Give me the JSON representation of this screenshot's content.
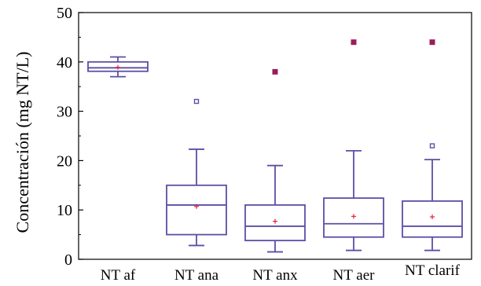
{
  "colors": {
    "box": "#5b4fa6",
    "mean": "#e8203a",
    "outlier": "#9b1d5a",
    "axis": "#000000"
  },
  "chart_data": {
    "type": "box",
    "title": "",
    "xlabel": "",
    "ylabel": "Concentración  (mg NT/L)",
    "ylim": [
      0,
      50
    ],
    "yticks": [
      "0",
      "10",
      "20",
      "30",
      "40",
      "50"
    ],
    "categories": [
      "NT af",
      "NT ana",
      "NT anx",
      "NT aer",
      "NT clarif"
    ],
    "boxes": [
      {
        "name": "NT af",
        "whisker_low": 37,
        "q1": 38.1,
        "median": 38.8,
        "q3": 40,
        "whisker_high": 41,
        "mean": 38.9,
        "outliers": [],
        "far_outliers": []
      },
      {
        "name": "NT ana",
        "whisker_low": 2.8,
        "q1": 5,
        "median": 11,
        "q3": 15,
        "whisker_high": 22.3,
        "mean": 10.7,
        "outliers": [
          32
        ],
        "far_outliers": []
      },
      {
        "name": "NT anx",
        "whisker_low": 1.5,
        "q1": 3.8,
        "median": 6.7,
        "q3": 11,
        "whisker_high": 19,
        "mean": 7.7,
        "outliers": [],
        "far_outliers": [
          38
        ]
      },
      {
        "name": "NT aer",
        "whisker_low": 1.8,
        "q1": 4.5,
        "median": 7.2,
        "q3": 12.4,
        "whisker_high": 22,
        "mean": 8.7,
        "outliers": [],
        "far_outliers": [
          44
        ]
      },
      {
        "name": "NT clarif",
        "whisker_low": 1.8,
        "q1": 4.5,
        "median": 6.7,
        "q3": 11.8,
        "whisker_high": 20.2,
        "mean": 8.6,
        "outliers": [
          23
        ],
        "far_outliers": [
          44
        ]
      }
    ],
    "grid": false,
    "legend": "none"
  }
}
